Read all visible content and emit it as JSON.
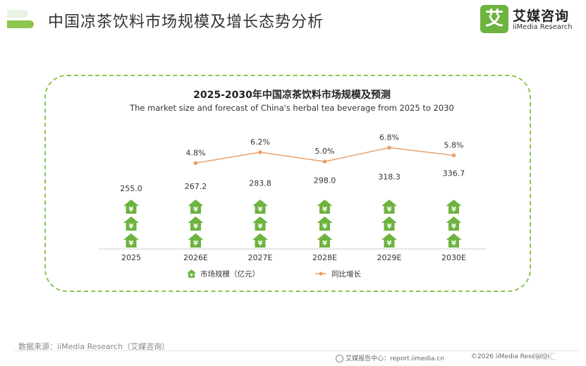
{
  "header": {
    "title": "中国凉茶饮料市场规模及增长态势分析",
    "brand_mark": "艾",
    "brand_cn": "艾媒咨询",
    "brand_en": "iiMedia Research"
  },
  "colors": {
    "accent_green": "#6db33f",
    "light_green": "#8cc64f",
    "line_orange": "#e8a06b",
    "text": "#333333"
  },
  "chart_data": {
    "type": "bar",
    "title": "2025-2030年中国凉茶饮料市场规模及预测",
    "subtitle": "The market size and forecast of China's herbal tea beverage from 2025 to 2030",
    "categories": [
      "2025",
      "2026E",
      "2027E",
      "2028E",
      "2029E",
      "2030E"
    ],
    "series": [
      {
        "name": "市场规模（亿元）",
        "type": "bar",
        "marker": "house-yuan-icon",
        "values": [
          255.0,
          267.2,
          283.8,
          298.0,
          318.3,
          336.7
        ],
        "labels": [
          "255.0",
          "267.2",
          "283.8",
          "298.0",
          "318.3",
          "336.7"
        ]
      },
      {
        "name": "同比增长",
        "type": "line",
        "values": [
          null,
          4.8,
          6.2,
          5.0,
          6.8,
          5.8
        ],
        "labels": [
          "",
          "4.8%",
          "6.2%",
          "5.0%",
          "6.8%",
          "5.8%"
        ]
      }
    ],
    "legend_position": "bottom",
    "grid": false
  },
  "footer": {
    "source": "数据来源：iiMedia Research（艾媒咨询）",
    "center": "艾媒报告中心：report.iimedia.cn",
    "copyright": "©2026  iiMedia Research",
    "watermark": "格隆汇"
  }
}
